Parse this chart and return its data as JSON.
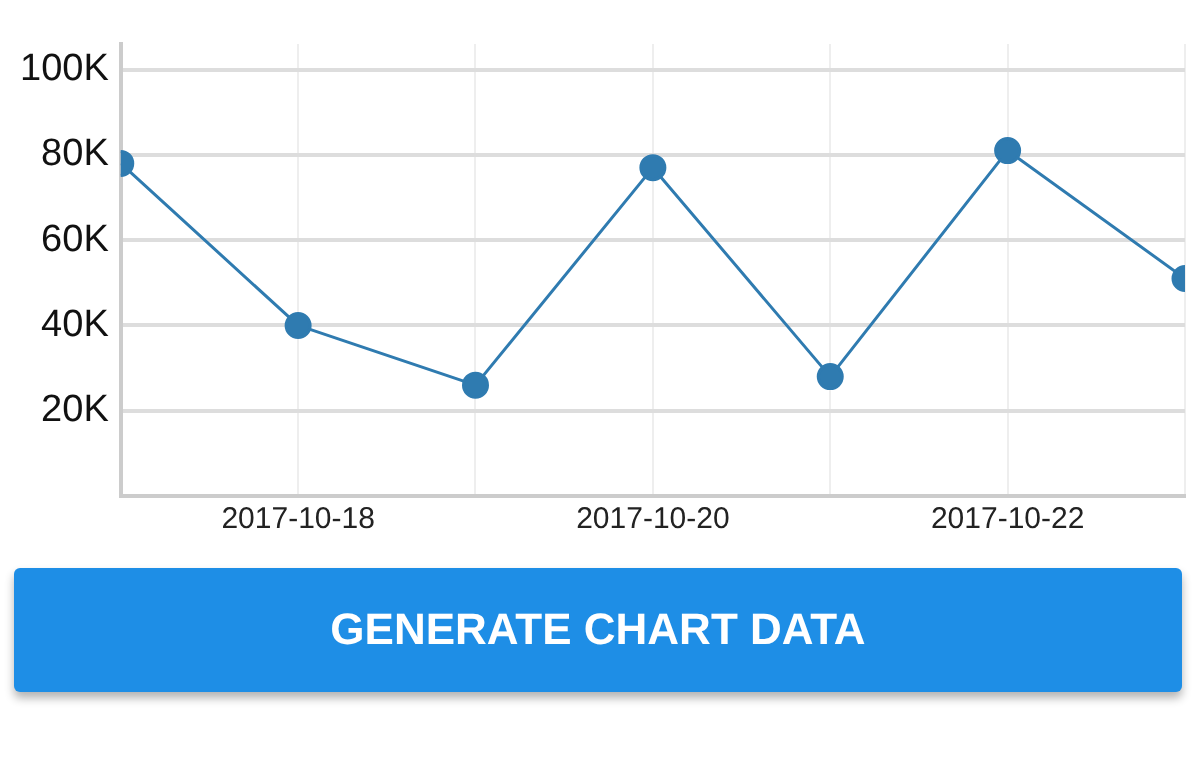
{
  "chart_data": {
    "type": "line",
    "x": [
      "2017-10-17",
      "2017-10-18",
      "2017-10-19",
      "2017-10-20",
      "2017-10-21",
      "2017-10-22",
      "2017-10-23"
    ],
    "series": [
      {
        "color": "#2f7bb0",
        "values": [
          78000,
          40000,
          26000,
          77000,
          28000,
          81000,
          51000
        ]
      }
    ],
    "xlim": [
      "2017-10-17",
      "2017-10-23"
    ],
    "xticks": [
      {
        "value": "2017-10-17",
        "label": null
      },
      "2017-10-18",
      {
        "value": "2017-10-19",
        "label": null
      },
      "2017-10-20",
      {
        "value": "2017-10-21",
        "label": null
      },
      "2017-10-22",
      {
        "value": "2017-10-23",
        "label": null
      }
    ],
    "ylim": [
      0,
      106000
    ],
    "yticks": [
      {
        "value": 0,
        "label": null
      },
      {
        "value": 20000,
        "label": "20K"
      },
      {
        "value": 40000,
        "label": "40K"
      },
      {
        "value": 60000,
        "label": "60K"
      },
      {
        "value": 80000,
        "label": "80K"
      },
      {
        "value": 100000,
        "label": "100K"
      }
    ],
    "grid": true,
    "legend": false,
    "marker": "circle",
    "line_style": "solid",
    "annotations": [
      "GENERATE CHART DATA"
    ]
  }
}
